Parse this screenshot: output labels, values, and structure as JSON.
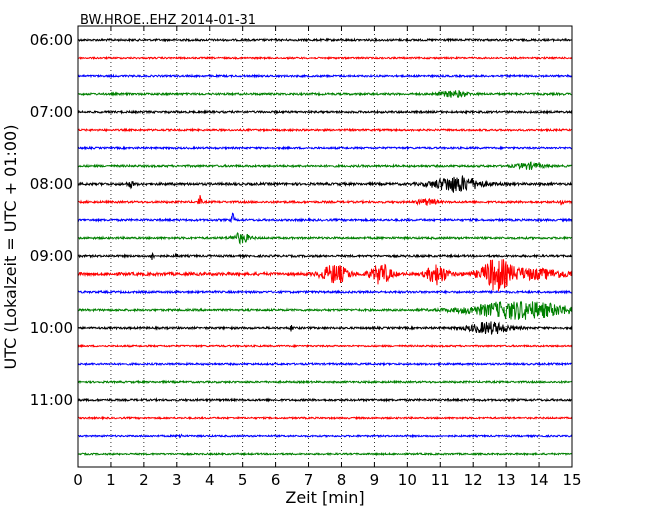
{
  "chart_data": {
    "type": "line",
    "title": "BW.HROE..EHZ 2014-01-31",
    "xlabel": "Zeit  [min]",
    "ylabel": "UTC (Lokalzeit = UTC + 01:00)",
    "xlim": [
      0,
      15
    ],
    "x_ticks": [
      "0",
      "1",
      "2",
      "3",
      "4",
      "5",
      "6",
      "7",
      "8",
      "9",
      "10",
      "11",
      "12",
      "13",
      "14",
      "15"
    ],
    "y_ticks": [
      "06:00",
      "07:00",
      "08:00",
      "09:00",
      "10:00",
      "11:00"
    ],
    "grid": "vertical dotted lines at each minute",
    "trace_colors": [
      "#000000",
      "#ff0000",
      "#0000ff",
      "#008000"
    ],
    "traces": [
      {
        "time": "06:00",
        "color": "#000000",
        "amp": 1.0,
        "events": []
      },
      {
        "time": "06:15",
        "color": "#ff0000",
        "amp": 0.8,
        "events": []
      },
      {
        "time": "06:30",
        "color": "#0000ff",
        "amp": 0.9,
        "events": []
      },
      {
        "time": "06:45",
        "color": "#008000",
        "amp": 1.0,
        "events": [
          {
            "t": 11.4,
            "a": 3,
            "w": 0.4
          }
        ]
      },
      {
        "time": "07:00",
        "color": "#000000",
        "amp": 1.0,
        "events": []
      },
      {
        "time": "07:15",
        "color": "#ff0000",
        "amp": 0.9,
        "events": []
      },
      {
        "time": "07:30",
        "color": "#0000ff",
        "amp": 0.9,
        "events": []
      },
      {
        "time": "07:45",
        "color": "#008000",
        "amp": 1.0,
        "events": [
          {
            "t": 13.7,
            "a": 3,
            "w": 0.4
          }
        ]
      },
      {
        "time": "08:00",
        "color": "#000000",
        "amp": 1.2,
        "events": [
          {
            "t": 11.5,
            "a": 8,
            "w": 0.7
          },
          {
            "t": 1.6,
            "a": 3,
            "w": 0.1
          }
        ]
      },
      {
        "time": "08:15",
        "color": "#ff0000",
        "amp": 1.0,
        "events": [
          {
            "t": 3.7,
            "a": 6,
            "w": 0.05
          },
          {
            "t": 10.6,
            "a": 3,
            "w": 0.3
          },
          {
            "t": 14.7,
            "a": 4,
            "w": 0.05
          }
        ]
      },
      {
        "time": "08:30",
        "color": "#0000ff",
        "amp": 1.0,
        "events": [
          {
            "t": 4.7,
            "a": 6,
            "w": 0.05
          }
        ]
      },
      {
        "time": "08:45",
        "color": "#008000",
        "amp": 1.0,
        "events": [
          {
            "t": 4.95,
            "a": 5,
            "w": 0.25
          }
        ]
      },
      {
        "time": "09:00",
        "color": "#000000",
        "amp": 1.0,
        "events": [
          {
            "t": 2.25,
            "a": 6,
            "w": 0.04
          },
          {
            "t": 3.0,
            "a": 3,
            "w": 0.04
          }
        ]
      },
      {
        "time": "09:15",
        "color": "#ff0000",
        "amp": 1.5,
        "events": [
          {
            "t": 7.8,
            "a": 9,
            "w": 0.4
          },
          {
            "t": 9.2,
            "a": 10,
            "w": 0.3
          },
          {
            "t": 10.9,
            "a": 10,
            "w": 0.3
          },
          {
            "t": 12.7,
            "a": 14,
            "w": 0.4
          },
          {
            "t": 13.7,
            "a": 5,
            "w": 1.2
          }
        ]
      },
      {
        "time": "09:30",
        "color": "#0000ff",
        "amp": 1.0,
        "events": []
      },
      {
        "time": "09:45",
        "color": "#008000",
        "amp": 1.0,
        "events": [
          {
            "t": 13.4,
            "a": 9,
            "w": 1.5
          }
        ]
      },
      {
        "time": "10:00",
        "color": "#000000",
        "amp": 1.0,
        "events": [
          {
            "t": 12.5,
            "a": 6,
            "w": 0.6
          },
          {
            "t": 6.5,
            "a": 4,
            "w": 0.05
          }
        ]
      },
      {
        "time": "10:15",
        "color": "#ff0000",
        "amp": 0.8,
        "events": []
      },
      {
        "time": "10:30",
        "color": "#0000ff",
        "amp": 0.9,
        "events": []
      },
      {
        "time": "10:45",
        "color": "#008000",
        "amp": 0.9,
        "events": []
      },
      {
        "time": "11:00",
        "color": "#000000",
        "amp": 1.0,
        "events": []
      },
      {
        "time": "11:15",
        "color": "#ff0000",
        "amp": 0.8,
        "events": []
      },
      {
        "time": "11:30",
        "color": "#0000ff",
        "amp": 0.8,
        "events": [
          {
            "t": 3.1,
            "a": 3,
            "w": 0.05
          }
        ]
      },
      {
        "time": "11:45",
        "color": "#008000",
        "amp": 0.8,
        "events": []
      }
    ]
  }
}
